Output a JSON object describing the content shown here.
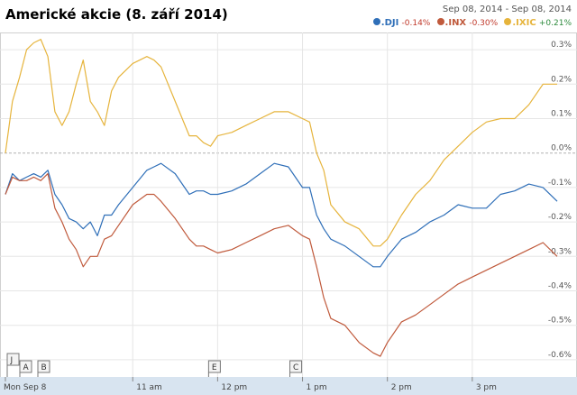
{
  "header": {
    "title": "Americké akcie (8. září 2014)",
    "date_range": "Sep 08, 2014 - Sep 08, 2014"
  },
  "legend": [
    {
      "name": ".DJI",
      "change": "-0.14%",
      "color": "#2f6fb8",
      "change_color": "#c0392b"
    },
    {
      "name": ".INX",
      "change": "-0.30%",
      "color": "#c05a3c",
      "change_color": "#c0392b"
    },
    {
      "name": ".IXIC",
      "change": "+0.21%",
      "color": "#e6b43c",
      "change_color": "#2e8b3d"
    }
  ],
  "colors": {
    "dji": "#2f6fb8",
    "inx": "#c05a3c",
    "ixic": "#e6b43c",
    "grid": "#e6e6e6",
    "zero_line": "#b0b0b0",
    "axis_band": "#d8e4f0"
  },
  "x_axis_labels": [
    "Mon Sep 8",
    "11 am",
    "12 pm",
    "1 pm",
    "2 pm",
    "3 pm"
  ],
  "event_flags": [
    "J",
    "A",
    "B",
    "E",
    "C"
  ],
  "chart_data": {
    "type": "line",
    "title": "Americké akcie (8. září 2014)",
    "x_label": "",
    "y_label": "",
    "x_range": [
      "09:30",
      "16:00"
    ],
    "y_range": [
      -0.65,
      0.35
    ],
    "y_unit": "%",
    "y_ticks": [
      0.3,
      0.2,
      0.1,
      0.0,
      -0.1,
      -0.2,
      -0.3,
      -0.4,
      -0.5,
      -0.6
    ],
    "y_tick_labels": [
      "0.3%",
      "0.2%",
      "0.1%",
      "0.0%",
      "-0.1%",
      "-0.2%",
      "-0.3%",
      "-0.4%",
      "-0.5%",
      "-0.6%"
    ],
    "x_tick_labels": [
      "Mon Sep 8",
      "11 am",
      "12 pm",
      "1 pm",
      "2 pm",
      "3 pm"
    ],
    "x_ticks": [
      "09:30",
      "11:00",
      "12:00",
      "13:00",
      "14:00",
      "15:00"
    ],
    "grid": true,
    "legend_position": "top-right",
    "series": [
      {
        "name": ".IXIC",
        "x": [
          "09:30",
          "09:35",
          "09:40",
          "09:45",
          "09:50",
          "09:55",
          "10:00",
          "10:05",
          "10:10",
          "10:15",
          "10:20",
          "10:25",
          "10:30",
          "10:35",
          "10:40",
          "10:45",
          "10:50",
          "11:00",
          "11:10",
          "11:15",
          "11:20",
          "11:30",
          "11:40",
          "11:45",
          "11:50",
          "11:55",
          "12:00",
          "12:10",
          "12:20",
          "12:30",
          "12:40",
          "12:50",
          "13:00",
          "13:05",
          "13:10",
          "13:15",
          "13:20",
          "13:30",
          "13:40",
          "13:50",
          "13:55",
          "14:00",
          "14:10",
          "14:20",
          "14:30",
          "14:40",
          "14:50",
          "15:00",
          "15:10",
          "15:20",
          "15:30",
          "15:40",
          "15:50",
          "16:00"
        ],
        "y": [
          0.0,
          0.15,
          0.22,
          0.3,
          0.32,
          0.33,
          0.28,
          0.12,
          0.08,
          0.12,
          0.2,
          0.27,
          0.15,
          0.12,
          0.08,
          0.18,
          0.22,
          0.26,
          0.28,
          0.27,
          0.25,
          0.15,
          0.05,
          0.05,
          0.03,
          0.02,
          0.05,
          0.06,
          0.08,
          0.1,
          0.12,
          0.12,
          0.1,
          0.09,
          0.0,
          -0.05,
          -0.15,
          -0.2,
          -0.22,
          -0.27,
          -0.27,
          -0.25,
          -0.18,
          -0.12,
          -0.08,
          -0.02,
          0.02,
          0.06,
          0.09,
          0.1,
          0.1,
          0.14,
          0.2,
          0.2
        ]
      },
      {
        "name": ".DJI",
        "x": [
          "09:30",
          "09:35",
          "09:40",
          "09:45",
          "09:50",
          "09:55",
          "10:00",
          "10:05",
          "10:10",
          "10:15",
          "10:20",
          "10:25",
          "10:30",
          "10:35",
          "10:40",
          "10:45",
          "10:50",
          "11:00",
          "11:10",
          "11:15",
          "11:20",
          "11:30",
          "11:40",
          "11:45",
          "11:50",
          "11:55",
          "12:00",
          "12:10",
          "12:20",
          "12:30",
          "12:40",
          "12:50",
          "13:00",
          "13:05",
          "13:10",
          "13:15",
          "13:20",
          "13:30",
          "13:40",
          "13:50",
          "13:55",
          "14:00",
          "14:10",
          "14:20",
          "14:30",
          "14:40",
          "14:50",
          "15:00",
          "15:10",
          "15:20",
          "15:30",
          "15:40",
          "15:50",
          "16:00"
        ],
        "y": [
          -0.12,
          -0.06,
          -0.08,
          -0.07,
          -0.06,
          -0.07,
          -0.05,
          -0.12,
          -0.15,
          -0.19,
          -0.2,
          -0.22,
          -0.2,
          -0.24,
          -0.18,
          -0.18,
          -0.15,
          -0.1,
          -0.05,
          -0.04,
          -0.03,
          -0.06,
          -0.12,
          -0.11,
          -0.11,
          -0.12,
          -0.12,
          -0.11,
          -0.09,
          -0.06,
          -0.03,
          -0.04,
          -0.1,
          -0.1,
          -0.18,
          -0.22,
          -0.25,
          -0.27,
          -0.3,
          -0.33,
          -0.33,
          -0.3,
          -0.25,
          -0.23,
          -0.2,
          -0.18,
          -0.15,
          -0.16,
          -0.16,
          -0.12,
          -0.11,
          -0.09,
          -0.1,
          -0.14
        ]
      },
      {
        "name": ".INX",
        "x": [
          "09:30",
          "09:35",
          "09:40",
          "09:45",
          "09:50",
          "09:55",
          "10:00",
          "10:05",
          "10:10",
          "10:15",
          "10:20",
          "10:25",
          "10:30",
          "10:35",
          "10:40",
          "10:45",
          "10:50",
          "11:00",
          "11:10",
          "11:15",
          "11:20",
          "11:30",
          "11:40",
          "11:45",
          "11:50",
          "11:55",
          "12:00",
          "12:10",
          "12:20",
          "12:30",
          "12:40",
          "12:50",
          "13:00",
          "13:05",
          "13:10",
          "13:15",
          "13:20",
          "13:30",
          "13:40",
          "13:50",
          "13:55",
          "14:00",
          "14:10",
          "14:20",
          "14:30",
          "14:40",
          "14:50",
          "15:00",
          "15:10",
          "15:20",
          "15:30",
          "15:40",
          "15:50",
          "16:00"
        ],
        "y": [
          -0.12,
          -0.07,
          -0.08,
          -0.08,
          -0.07,
          -0.08,
          -0.06,
          -0.16,
          -0.2,
          -0.25,
          -0.28,
          -0.33,
          -0.3,
          -0.3,
          -0.25,
          -0.24,
          -0.21,
          -0.15,
          -0.12,
          -0.12,
          -0.14,
          -0.19,
          -0.25,
          -0.27,
          -0.27,
          -0.28,
          -0.29,
          -0.28,
          -0.26,
          -0.24,
          -0.22,
          -0.21,
          -0.24,
          -0.25,
          -0.33,
          -0.42,
          -0.48,
          -0.5,
          -0.55,
          -0.58,
          -0.59,
          -0.55,
          -0.49,
          -0.47,
          -0.44,
          -0.41,
          -0.38,
          -0.36,
          -0.34,
          -0.32,
          -0.3,
          -0.28,
          -0.26,
          -0.3
        ]
      }
    ]
  }
}
